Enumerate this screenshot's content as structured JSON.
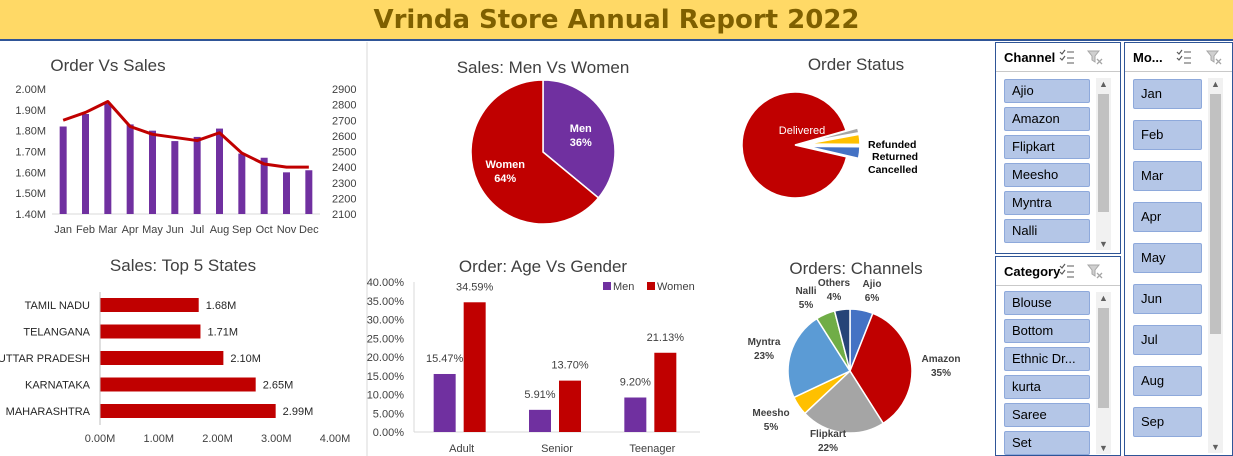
{
  "report_title": "Vrinda Store Annual Report 2022",
  "colors": {
    "purple": "#7030A0",
    "red": "#C00000",
    "title_bg": "#FFD966",
    "title_text": "#7F6000",
    "slicer_item": "#B4C6E7"
  },
  "chart_data": [
    {
      "id": "order_vs_sales",
      "type": "bar",
      "combo": "bar + line (secondary axis)",
      "title": "Order Vs Sales",
      "categories": [
        "Jan",
        "Feb",
        "Mar",
        "Apr",
        "May",
        "Jun",
        "Jul",
        "Aug",
        "Sep",
        "Oct",
        "Nov",
        "Dec"
      ],
      "series": [
        {
          "values": [
            1.82,
            1.88,
            1.93,
            1.83,
            1.8,
            1.75,
            1.77,
            1.81,
            1.69,
            1.67,
            1.6,
            1.61
          ],
          "type": "bar",
          "axis": "primary"
        },
        {
          "values": [
            2700,
            2750,
            2820,
            2660,
            2610,
            2590,
            2570,
            2620,
            2490,
            2420,
            2400,
            2400
          ],
          "type": "line",
          "axis": "secondary"
        }
      ],
      "y_ticks": [
        "1.40M",
        "1.50M",
        "1.60M",
        "1.70M",
        "1.80M",
        "1.90M",
        "2.00M"
      ],
      "ylim": [
        1.4,
        2.0
      ],
      "y2_ticks": [
        "2100",
        "2200",
        "2300",
        "2400",
        "2500",
        "2600",
        "2700",
        "2800",
        "2900"
      ],
      "y2lim": [
        2100,
        2900
      ],
      "grid": false
    },
    {
      "id": "men_vs_women",
      "type": "pie",
      "title": "Sales: Men Vs Women",
      "slices": [
        {
          "label": "Men",
          "percent_label": "36%",
          "value": 36,
          "color": "#7030A0"
        },
        {
          "label": "Women",
          "percent_label": "64%",
          "value": 64,
          "color": "#C00000"
        }
      ]
    },
    {
      "id": "order_status",
      "type": "pie",
      "title": "Order Status",
      "slices": [
        {
          "label": "Delivered",
          "value": 92,
          "color": "#C00000"
        },
        {
          "label": "Refunded",
          "value": 1.5,
          "color": "#A5A5A5"
        },
        {
          "label": "Returned",
          "value": 3,
          "color": "#FFC000"
        },
        {
          "label": "Cancelled",
          "value": 3.5,
          "color": "#4472C4"
        }
      ]
    },
    {
      "id": "top_states",
      "type": "bar",
      "orientation": "horizontal",
      "title": "Sales: Top 5 States",
      "categories": [
        "TAMIL NADU",
        "TELANGANA",
        "UTTAR PRADESH",
        "KARNATAKA",
        "MAHARASHTRA"
      ],
      "values": [
        1.68,
        1.71,
        2.1,
        2.65,
        2.99
      ],
      "value_labels": [
        "1.68M",
        "1.71M",
        "2.10M",
        "2.65M",
        "2.99M"
      ],
      "x_ticks": [
        "0.00M",
        "1.00M",
        "2.00M",
        "3.00M",
        "4.00M"
      ],
      "xlim": [
        0,
        4.0
      ]
    },
    {
      "id": "age_vs_gender",
      "type": "bar",
      "title": "Order: Age Vs Gender",
      "categories": [
        "Adult",
        "Senior",
        "Teenager"
      ],
      "series": [
        {
          "name": "Men",
          "values": [
            15.47,
            5.91,
            9.2
          ],
          "labels": [
            "15.47%",
            "5.91%",
            "9.20%"
          ],
          "color": "#7030A0"
        },
        {
          "name": "Women",
          "values": [
            34.59,
            13.7,
            21.13
          ],
          "labels": [
            "34.59%",
            "13.70%",
            "21.13%"
          ],
          "color": "#C00000"
        }
      ],
      "y_ticks": [
        "0.00%",
        "5.00%",
        "10.00%",
        "15.00%",
        "20.00%",
        "25.00%",
        "30.00%",
        "35.00%",
        "40.00%"
      ],
      "ylim": [
        0,
        40
      ],
      "legend": "top-right"
    },
    {
      "id": "orders_channels",
      "type": "pie",
      "title": "Orders: Channels",
      "slices": [
        {
          "label": "Ajio",
          "percent_label": "6%",
          "value": 6,
          "color": "#4472C4"
        },
        {
          "label": "Amazon",
          "percent_label": "35%",
          "value": 35,
          "color": "#C00000"
        },
        {
          "label": "Flipkart",
          "percent_label": "22%",
          "value": 22,
          "color": "#A5A5A5"
        },
        {
          "label": "Meesho",
          "percent_label": "5%",
          "value": 5,
          "color": "#FFC000"
        },
        {
          "label": "Myntra",
          "percent_label": "23%",
          "value": 23,
          "color": "#5B9BD5"
        },
        {
          "label": "Nalli",
          "percent_label": "5%",
          "value": 5,
          "color": "#70AD47"
        },
        {
          "label": "Others",
          "percent_label": "4%",
          "value": 4,
          "color": "#264478"
        }
      ]
    }
  ],
  "slicers": [
    {
      "id": "channel",
      "title": "Channel",
      "items": [
        "Ajio",
        "Amazon",
        "Flipkart",
        "Meesho",
        "Myntra",
        "Nalli"
      ]
    },
    {
      "id": "category",
      "title": "Category",
      "items": [
        "Blouse",
        "Bottom",
        "Ethnic Dr...",
        "kurta",
        "Saree",
        "Set"
      ]
    },
    {
      "id": "month",
      "title": "Mo...",
      "items": [
        "Jan",
        "Feb",
        "Mar",
        "Apr",
        "May",
        "Jun",
        "Jul",
        "Aug",
        "Sep"
      ]
    }
  ]
}
